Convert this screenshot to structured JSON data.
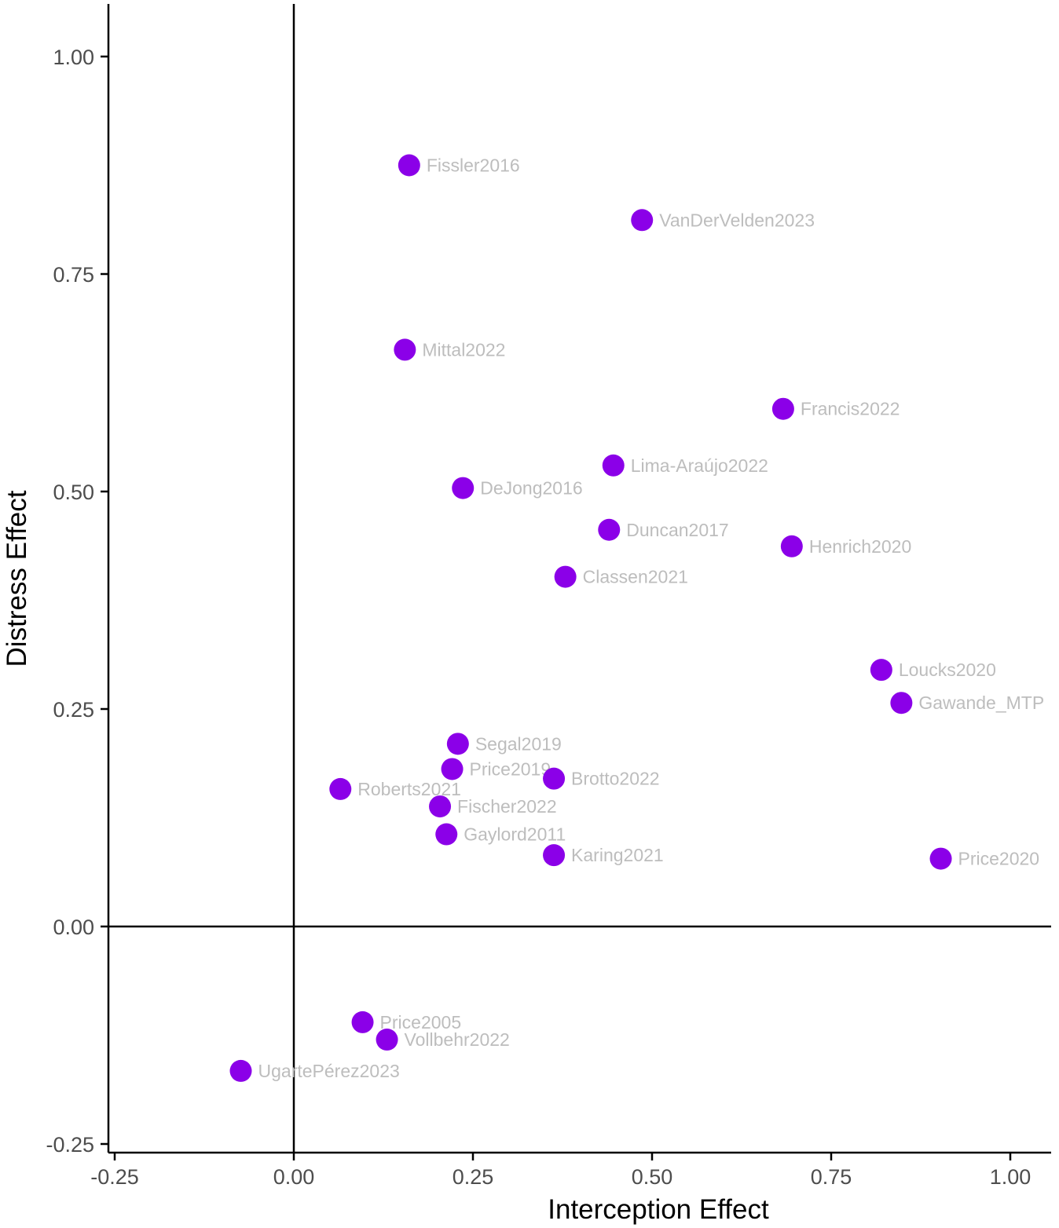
{
  "chart_data": {
    "type": "scatter",
    "title": "",
    "xlabel": "Interception Effect",
    "ylabel": "Distress Effect",
    "xlim": [
      -0.27,
      1.06
    ],
    "ylim": [
      -0.255,
      1.06
    ],
    "xticks": [
      -0.25,
      0.0,
      0.25,
      0.5,
      0.75,
      1.0
    ],
    "xtick_labels": [
      "-0.25",
      "0.00",
      "0.25",
      "0.50",
      "0.75",
      "1.00"
    ],
    "yticks": [
      -0.25,
      0.0,
      0.25,
      0.5,
      0.75,
      1.0
    ],
    "ytick_labels": [
      "-0.25",
      "0.00",
      "0.25",
      "0.50",
      "0.75",
      "1.00"
    ],
    "reference_lines": {
      "x": 0,
      "y": 0
    },
    "grid": false,
    "point_color": "#8b00e8",
    "label_color": "#bdbdbd",
    "points": [
      {
        "label": "Fissler2016",
        "x": 0.161,
        "y": 0.875
      },
      {
        "label": "VanDerVelden2023",
        "x": 0.486,
        "y": 0.812
      },
      {
        "label": "Mittal2022",
        "x": 0.155,
        "y": 0.663
      },
      {
        "label": "Francis2022",
        "x": 0.683,
        "y": 0.595
      },
      {
        "label": "Lima-Araújo2022",
        "x": 0.446,
        "y": 0.53
      },
      {
        "label": "DeJong2016",
        "x": 0.236,
        "y": 0.504
      },
      {
        "label": "Duncan2017",
        "x": 0.44,
        "y": 0.456
      },
      {
        "label": "Henrich2020",
        "x": 0.695,
        "y": 0.437
      },
      {
        "label": "Classen2021",
        "x": 0.379,
        "y": 0.402
      },
      {
        "label": "Loucks2020",
        "x": 0.82,
        "y": 0.295
      },
      {
        "label": "Gawande_MTP",
        "x": 0.848,
        "y": 0.257
      },
      {
        "label": "Segal2019",
        "x": 0.229,
        "y": 0.21
      },
      {
        "label": "Price2019",
        "x": 0.221,
        "y": 0.181
      },
      {
        "label": "Brotto2022",
        "x": 0.363,
        "y": 0.17
      },
      {
        "label": "Roberts2021",
        "x": 0.065,
        "y": 0.158
      },
      {
        "label": "Fischer2022",
        "x": 0.204,
        "y": 0.138
      },
      {
        "label": "Gaylord2011",
        "x": 0.213,
        "y": 0.106
      },
      {
        "label": "Karing2021",
        "x": 0.363,
        "y": 0.082
      },
      {
        "label": "Price2020",
        "x": 0.903,
        "y": 0.078
      },
      {
        "label": "Price2005",
        "x": 0.096,
        "y": -0.11
      },
      {
        "label": "Vollbehr2022",
        "x": 0.13,
        "y": -0.13
      },
      {
        "label": "UgartePérez2023",
        "x": -0.074,
        "y": -0.166
      }
    ]
  }
}
